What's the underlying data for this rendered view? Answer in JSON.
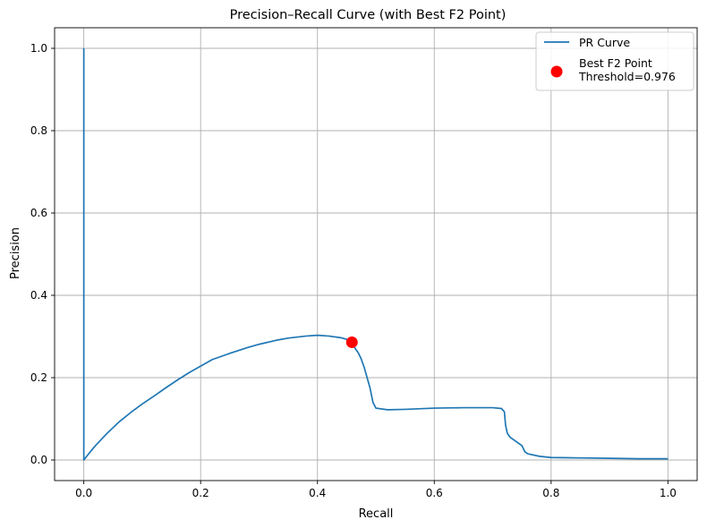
{
  "chart_data": {
    "type": "line",
    "title": "Precision–Recall Curve (with Best F2 Point)",
    "xlabel": "Recall",
    "ylabel": "Precision",
    "xlim": [
      -0.05,
      1.05
    ],
    "ylim": [
      -0.05,
      1.05
    ],
    "xticks": [
      0.0,
      0.2,
      0.4,
      0.6,
      0.8,
      1.0
    ],
    "yticks": [
      0.0,
      0.2,
      0.4,
      0.6,
      0.8,
      1.0
    ],
    "xtick_labels": [
      "0.0",
      "0.2",
      "0.4",
      "0.6",
      "0.8",
      "1.0"
    ],
    "ytick_labels": [
      "0.0",
      "0.2",
      "0.4",
      "0.6",
      "0.8",
      "1.0"
    ],
    "grid": true,
    "legend_position": "top-right",
    "series": [
      {
        "name": "PR Curve",
        "color": "#1f77b4",
        "x": [
          0.0,
          0.0,
          0.0,
          0.01,
          0.02,
          0.04,
          0.06,
          0.08,
          0.1,
          0.12,
          0.14,
          0.16,
          0.18,
          0.2,
          0.22,
          0.25,
          0.28,
          0.3,
          0.33,
          0.35,
          0.38,
          0.4,
          0.42,
          0.44,
          0.45,
          0.455,
          0.46,
          0.465,
          0.47,
          0.475,
          0.48,
          0.485,
          0.49,
          0.495,
          0.5,
          0.52,
          0.55,
          0.6,
          0.65,
          0.7,
          0.715,
          0.72,
          0.722,
          0.725,
          0.73,
          0.74,
          0.75,
          0.755,
          0.76,
          0.78,
          0.8,
          0.85,
          0.9,
          0.95,
          1.0
        ],
        "y": [
          1.0,
          0.5,
          0.0,
          0.018,
          0.035,
          0.065,
          0.092,
          0.115,
          0.136,
          0.155,
          0.175,
          0.194,
          0.212,
          0.228,
          0.244,
          0.259,
          0.273,
          0.281,
          0.291,
          0.296,
          0.301,
          0.303,
          0.301,
          0.297,
          0.293,
          0.288,
          0.282,
          0.27,
          0.26,
          0.245,
          0.225,
          0.2,
          0.175,
          0.14,
          0.126,
          0.122,
          0.123,
          0.126,
          0.127,
          0.127,
          0.125,
          0.117,
          0.085,
          0.065,
          0.055,
          0.045,
          0.035,
          0.02,
          0.015,
          0.009,
          0.006,
          0.005,
          0.004,
          0.003,
          0.003
        ]
      }
    ],
    "best_point": {
      "name": "Best F2 Point",
      "label_line2": "Threshold=0.976",
      "color": "#ff0000",
      "x": 0.459,
      "y": 0.286
    }
  }
}
